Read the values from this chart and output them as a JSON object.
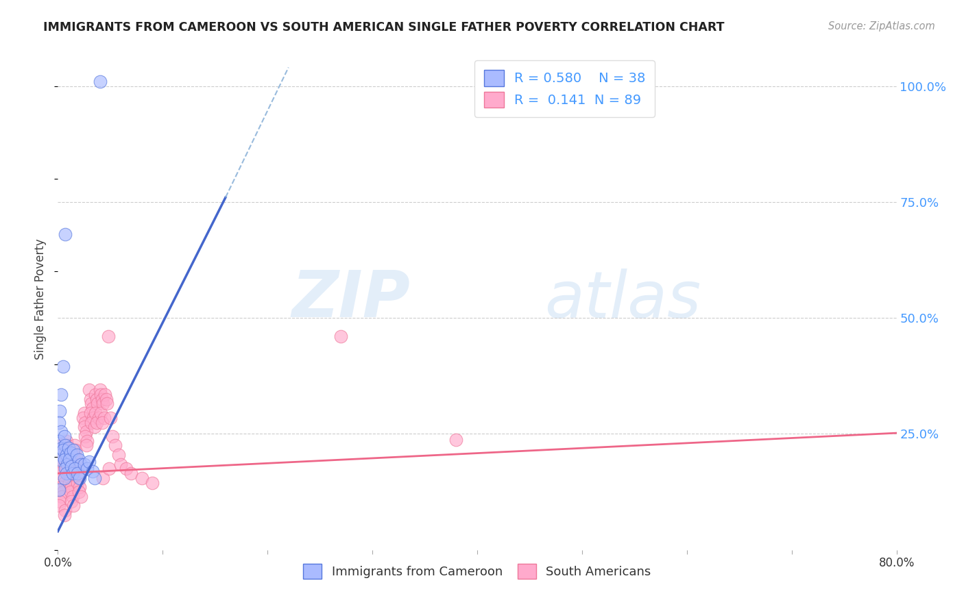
{
  "title": "IMMIGRANTS FROM CAMEROON VS SOUTH AMERICAN SINGLE FATHER POVERTY CORRELATION CHART",
  "source": "Source: ZipAtlas.com",
  "ylabel": "Single Father Poverty",
  "ytick_labels": [
    "100.0%",
    "75.0%",
    "50.0%",
    "25.0%"
  ],
  "ytick_positions": [
    1.0,
    0.75,
    0.5,
    0.25
  ],
  "xlim": [
    0.0,
    0.8
  ],
  "ylim": [
    0.0,
    1.08
  ],
  "watermark_zip": "ZIP",
  "watermark_atlas": "atlas",
  "legend_r1": "R = 0.580",
  "legend_n1": "N = 38",
  "legend_r2": "R =  0.141",
  "legend_n2": "N = 89",
  "color_blue_fill": "#aabbff",
  "color_blue_edge": "#5577dd",
  "color_pink_fill": "#ffaacc",
  "color_pink_edge": "#ee7799",
  "color_trend_blue": "#4466cc",
  "color_trend_pink": "#ee6688",
  "color_trend_blue_dashed": "#99bbdd",
  "blue_trend_x0": 0.0,
  "blue_trend_y0": 0.04,
  "blue_trend_x1": 0.16,
  "blue_trend_y1": 0.76,
  "blue_trend_dashed_x1": 0.22,
  "blue_trend_dashed_y1": 1.04,
  "pink_trend_x0": 0.0,
  "pink_trend_y0": 0.165,
  "pink_trend_x1": 0.8,
  "pink_trend_y1": 0.252,
  "cameroon_data": [
    [
      0.04,
      1.01
    ],
    [
      0.007,
      0.68
    ],
    [
      0.005,
      0.395
    ],
    [
      0.003,
      0.335
    ],
    [
      0.002,
      0.3
    ],
    [
      0.001,
      0.275
    ],
    [
      0.003,
      0.255
    ],
    [
      0.001,
      0.235
    ],
    [
      0.004,
      0.22
    ],
    [
      0.003,
      0.205
    ],
    [
      0.002,
      0.195
    ],
    [
      0.006,
      0.245
    ],
    [
      0.007,
      0.225
    ],
    [
      0.005,
      0.215
    ],
    [
      0.008,
      0.205
    ],
    [
      0.006,
      0.195
    ],
    [
      0.009,
      0.185
    ],
    [
      0.007,
      0.175
    ],
    [
      0.008,
      0.165
    ],
    [
      0.006,
      0.155
    ],
    [
      0.01,
      0.22
    ],
    [
      0.012,
      0.21
    ],
    [
      0.011,
      0.195
    ],
    [
      0.013,
      0.18
    ],
    [
      0.014,
      0.165
    ],
    [
      0.015,
      0.215
    ],
    [
      0.018,
      0.205
    ],
    [
      0.02,
      0.195
    ],
    [
      0.022,
      0.185
    ],
    [
      0.016,
      0.175
    ],
    [
      0.019,
      0.165
    ],
    [
      0.021,
      0.155
    ],
    [
      0.025,
      0.185
    ],
    [
      0.028,
      0.175
    ],
    [
      0.03,
      0.19
    ],
    [
      0.033,
      0.17
    ],
    [
      0.035,
      0.155
    ],
    [
      0.001,
      0.13
    ]
  ],
  "south_american_data": [
    [
      0.003,
      0.225
    ],
    [
      0.002,
      0.215
    ],
    [
      0.001,
      0.205
    ],
    [
      0.004,
      0.195
    ],
    [
      0.003,
      0.185
    ],
    [
      0.005,
      0.175
    ],
    [
      0.002,
      0.165
    ],
    [
      0.004,
      0.155
    ],
    [
      0.006,
      0.145
    ],
    [
      0.003,
      0.135
    ],
    [
      0.005,
      0.125
    ],
    [
      0.004,
      0.115
    ],
    [
      0.002,
      0.105
    ],
    [
      0.001,
      0.095
    ],
    [
      0.007,
      0.085
    ],
    [
      0.006,
      0.075
    ],
    [
      0.008,
      0.235
    ],
    [
      0.009,
      0.225
    ],
    [
      0.007,
      0.215
    ],
    [
      0.01,
      0.205
    ],
    [
      0.009,
      0.195
    ],
    [
      0.011,
      0.185
    ],
    [
      0.008,
      0.175
    ],
    [
      0.01,
      0.165
    ],
    [
      0.012,
      0.155
    ],
    [
      0.011,
      0.145
    ],
    [
      0.013,
      0.135
    ],
    [
      0.012,
      0.125
    ],
    [
      0.014,
      0.115
    ],
    [
      0.013,
      0.105
    ],
    [
      0.015,
      0.095
    ],
    [
      0.016,
      0.225
    ],
    [
      0.017,
      0.215
    ],
    [
      0.015,
      0.205
    ],
    [
      0.018,
      0.195
    ],
    [
      0.017,
      0.185
    ],
    [
      0.019,
      0.175
    ],
    [
      0.016,
      0.165
    ],
    [
      0.02,
      0.155
    ],
    [
      0.019,
      0.145
    ],
    [
      0.021,
      0.135
    ],
    [
      0.02,
      0.125
    ],
    [
      0.022,
      0.115
    ],
    [
      0.025,
      0.295
    ],
    [
      0.024,
      0.285
    ],
    [
      0.026,
      0.275
    ],
    [
      0.025,
      0.265
    ],
    [
      0.027,
      0.255
    ],
    [
      0.026,
      0.245
    ],
    [
      0.028,
      0.235
    ],
    [
      0.027,
      0.225
    ],
    [
      0.03,
      0.345
    ],
    [
      0.031,
      0.325
    ],
    [
      0.032,
      0.315
    ],
    [
      0.033,
      0.305
    ],
    [
      0.031,
      0.295
    ],
    [
      0.034,
      0.285
    ],
    [
      0.032,
      0.275
    ],
    [
      0.035,
      0.265
    ],
    [
      0.036,
      0.335
    ],
    [
      0.037,
      0.325
    ],
    [
      0.038,
      0.315
    ],
    [
      0.036,
      0.295
    ],
    [
      0.039,
      0.285
    ],
    [
      0.037,
      0.275
    ],
    [
      0.04,
      0.345
    ],
    [
      0.041,
      0.335
    ],
    [
      0.042,
      0.325
    ],
    [
      0.043,
      0.315
    ],
    [
      0.041,
      0.295
    ],
    [
      0.044,
      0.285
    ],
    [
      0.042,
      0.275
    ],
    [
      0.043,
      0.155
    ],
    [
      0.045,
      0.335
    ],
    [
      0.046,
      0.325
    ],
    [
      0.047,
      0.315
    ],
    [
      0.048,
      0.46
    ],
    [
      0.05,
      0.285
    ],
    [
      0.049,
      0.175
    ],
    [
      0.052,
      0.245
    ],
    [
      0.055,
      0.225
    ],
    [
      0.058,
      0.205
    ],
    [
      0.06,
      0.185
    ],
    [
      0.065,
      0.175
    ],
    [
      0.07,
      0.165
    ],
    [
      0.08,
      0.155
    ],
    [
      0.09,
      0.145
    ],
    [
      0.38,
      0.238
    ],
    [
      0.27,
      0.46
    ]
  ]
}
